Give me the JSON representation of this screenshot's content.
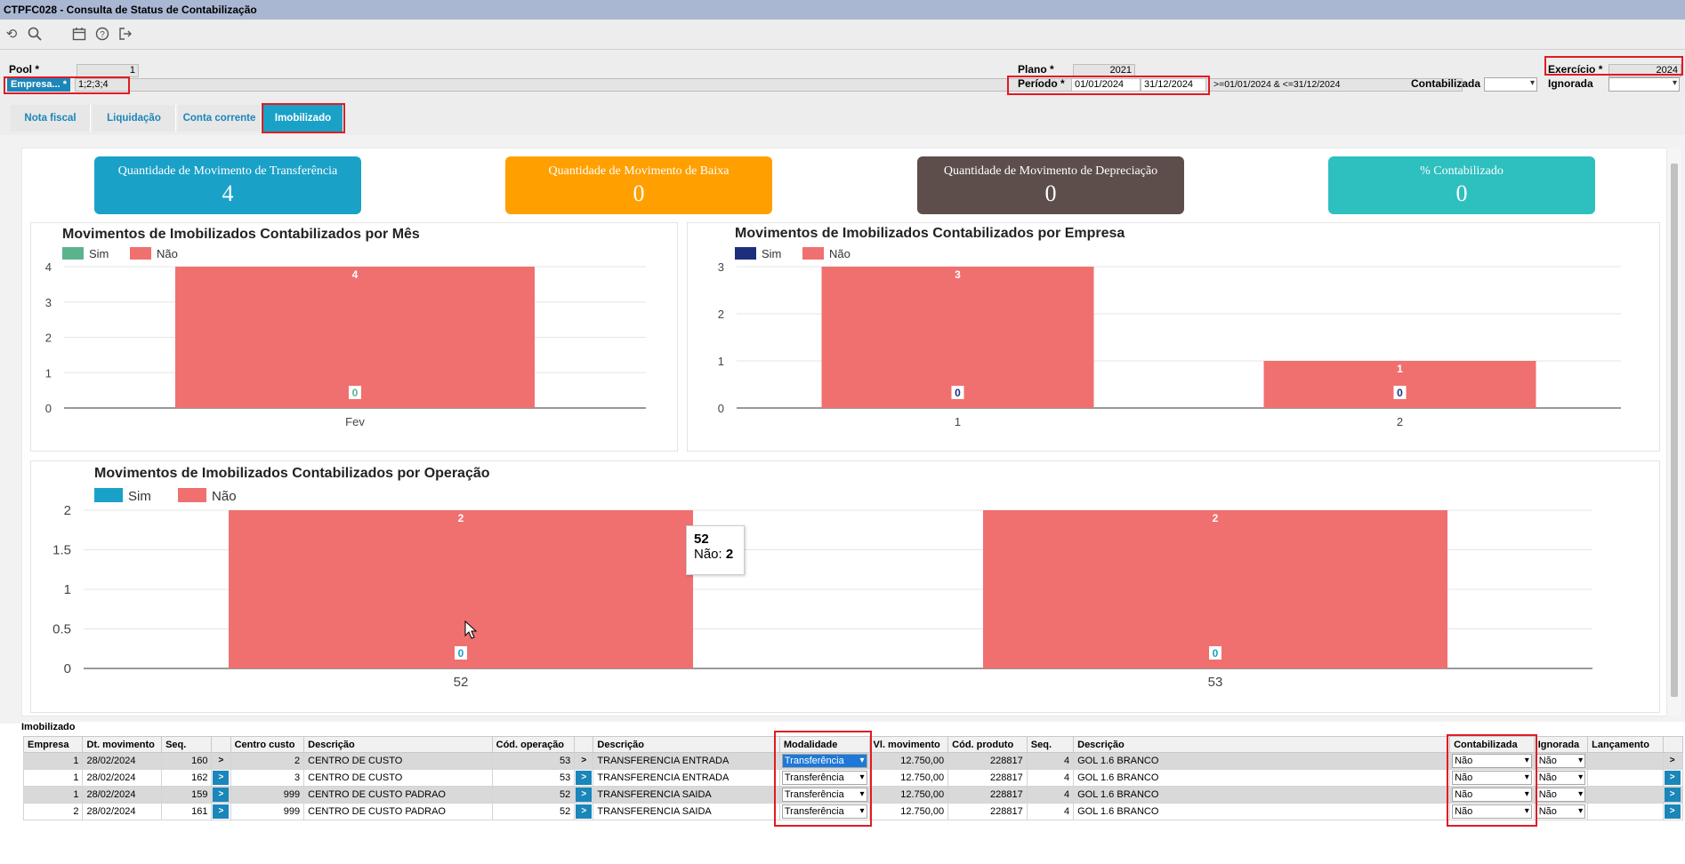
{
  "window": {
    "title": "CTPFC028 - Consulta de Status de Contabilização"
  },
  "filters": {
    "pool_label": "Pool *",
    "pool_value": "1",
    "empresa_label": "Empresa... *",
    "empresa_value": "1;2;3;4",
    "plano_label": "Plano *",
    "plano_value": "2021",
    "periodo_label": "Período *",
    "periodo_from": "01/01/2024",
    "periodo_to": "31/12/2024",
    "periodo_expr": ">=01/01/2024 & <=31/12/2024",
    "contabilizada_label": "Contabilizada",
    "exercicio_label": "Exercício *",
    "exercicio_value": "2024",
    "ignorada_label": "Ignorada"
  },
  "tabs": [
    {
      "label": "Nota fiscal"
    },
    {
      "label": "Liquidação"
    },
    {
      "label": "Conta corrente"
    },
    {
      "label": "Imobilizado",
      "active": true
    }
  ],
  "kpis": [
    {
      "label": "Quantidade de Movimento de Transferência",
      "value": "4",
      "color": "#1aa1c8"
    },
    {
      "label": "Quantidade de Movimento de Baixa",
      "value": "0",
      "color": "#ff9f00"
    },
    {
      "label": "Quantidade de Movimento de Depreciação",
      "value": "0",
      "color": "#5d4e4b"
    },
    {
      "label": "% Contabilizado",
      "value": "0",
      "color": "#2ebfbf"
    }
  ],
  "legend": {
    "sim": "Sim",
    "nao": "Não"
  },
  "colors": {
    "nao": "#f07070",
    "sim_mes": "#5ab38d",
    "sim_empresa": "#1d2f7c",
    "sim_operacao": "#1aa1c8"
  },
  "chart_data": [
    {
      "type": "bar",
      "title": "Movimentos de Imobilizados Contabilizados por Mês",
      "categories": [
        "Fev"
      ],
      "series": [
        {
          "name": "Sim",
          "values": [
            0
          ]
        },
        {
          "name": "Não",
          "values": [
            4
          ]
        }
      ],
      "ylim": [
        0,
        4
      ],
      "yticks": [
        "0",
        "1",
        "2",
        "3",
        "4"
      ],
      "legend": "top-left",
      "grid": true
    },
    {
      "type": "bar",
      "title": "Movimentos de Imobilizados Contabilizados por Empresa",
      "categories": [
        "1",
        "2"
      ],
      "series": [
        {
          "name": "Sim",
          "values": [
            0,
            0
          ]
        },
        {
          "name": "Não",
          "values": [
            3,
            1
          ]
        }
      ],
      "ylim": [
        0,
        3
      ],
      "yticks": [
        "0",
        "1",
        "2",
        "3"
      ],
      "legend": "top-left",
      "grid": true
    },
    {
      "type": "bar",
      "title": "Movimentos de Imobilizados Contabilizados por Operação",
      "categories": [
        "52",
        "53"
      ],
      "series": [
        {
          "name": "Sim",
          "values": [
            0,
            0
          ]
        },
        {
          "name": "Não",
          "values": [
            2,
            2
          ]
        }
      ],
      "ylim": [
        0,
        2
      ],
      "yticks": [
        "0",
        "0.5",
        "1",
        "1.5",
        "2"
      ],
      "legend": "top-left",
      "grid": true,
      "tooltip": {
        "title": "52",
        "label": "Não:",
        "value": "2"
      }
    }
  ],
  "grid": {
    "section_title": "Imobilizado",
    "headers": [
      "Empresa",
      "Dt. movimento",
      "Seq.",
      "",
      "Centro custo",
      "Descrição",
      "Cód. operação",
      "",
      "Descrição",
      "Modalidade",
      "Vl. movimento",
      "Cód. produto",
      "Seq.",
      "Descrição",
      "Contabilizada",
      "Ignorada",
      "Lançamento",
      ""
    ],
    "rows": [
      {
        "empresa": "1",
        "dt": "28/02/2024",
        "seq": "160",
        "cc": "2",
        "cc_desc": "CENTRO DE CUSTO",
        "op": "53",
        "op_desc": "TRANSFERENCIA ENTRADA",
        "modalidade": "Transferência",
        "vl": "12.750,00",
        "produto": "228817",
        "seq2": "4",
        "prod_desc": "GOL 1.6 BRANCO",
        "contabilizada": "Não",
        "ignorada": "Não",
        "go": ">"
      },
      {
        "empresa": "1",
        "dt": "28/02/2024",
        "seq": "162",
        "cc": "3",
        "cc_desc": "CENTRO DE CUSTO",
        "op": "53",
        "op_desc": "TRANSFERENCIA ENTRADA",
        "modalidade": "Transferência",
        "vl": "12.750,00",
        "produto": "228817",
        "seq2": "4",
        "prod_desc": "GOL 1.6 BRANCO",
        "contabilizada": "Não",
        "ignorada": "Não",
        "go": ">"
      },
      {
        "empresa": "1",
        "dt": "28/02/2024",
        "seq": "159",
        "cc": "999",
        "cc_desc": "CENTRO DE CUSTO PADRAO",
        "op": "52",
        "op_desc": "TRANSFERENCIA SAIDA",
        "modalidade": "Transferência",
        "vl": "12.750,00",
        "produto": "228817",
        "seq2": "4",
        "prod_desc": "GOL 1.6 BRANCO",
        "contabilizada": "Não",
        "ignorada": "Não",
        "go": ">"
      },
      {
        "empresa": "2",
        "dt": "28/02/2024",
        "seq": "161",
        "cc": "999",
        "cc_desc": "CENTRO DE CUSTO PADRAO",
        "op": "52",
        "op_desc": "TRANSFERENCIA SAIDA",
        "modalidade": "Transferência",
        "vl": "12.750,00",
        "produto": "228817",
        "seq2": "4",
        "prod_desc": "GOL 1.6 BRANCO",
        "contabilizada": "Não",
        "ignorada": "Não",
        "go": ">"
      }
    ]
  }
}
